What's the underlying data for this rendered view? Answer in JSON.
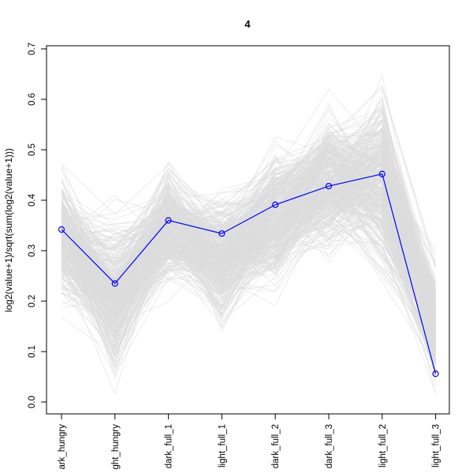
{
  "chart_data": {
    "type": "line",
    "title": "4",
    "xlabel": "",
    "ylabel": "log2(value+1)/sqrt(sum(log2(value+1)))",
    "categories": [
      "dark_hungry",
      "light_hungry",
      "dark_full_1",
      "light_full_1",
      "dark_full_2",
      "dark_full_3",
      "light_full_2",
      "light_full_3"
    ],
    "category_tick_labels": [
      "ark_hungry",
      "ght_hungry",
      "dark_full_1",
      "light_full_1",
      "dark_full_2",
      "dark_full_3",
      "light_full_2",
      "light_full_3"
    ],
    "ylim": [
      0.0,
      0.7
    ],
    "yticks": [
      0.0,
      0.1,
      0.2,
      0.3,
      0.4,
      0.5,
      0.6,
      0.7
    ],
    "series": [
      {
        "values": [
          0.342,
          0.235,
          0.36,
          0.334,
          0.391,
          0.428,
          0.452,
          0.056
        ],
        "color": "#0000ff",
        "markers": "open-circle"
      }
    ],
    "background_profiles": {
      "color": "#d3d3d3",
      "count_approx": 400,
      "range_min": [
        0.15,
        0.0,
        0.19,
        0.11,
        0.19,
        0.25,
        0.18,
        0.0
      ],
      "range_max": [
        0.49,
        0.41,
        0.51,
        0.46,
        0.55,
        0.62,
        0.68,
        0.31
      ]
    },
    "grid": false,
    "legend": "none"
  }
}
